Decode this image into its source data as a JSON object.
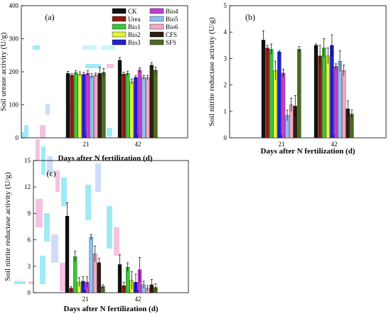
{
  "colors": {
    "CK": "#111111",
    "Urea": "#8b1a12",
    "Bio1": "#3cc63c",
    "Bio2": "#e2f23c",
    "Bio3": "#1f1fd6",
    "Bio4": "#c23fd2",
    "Bio5": "#8fbef0",
    "Bio6": "#f2a8c8",
    "CFS": "#2f1f0f",
    "SFS": "#4c6a22"
  },
  "legend_left": [
    "CK",
    "Urea",
    "Bio1",
    "Bio2",
    "Bio3"
  ],
  "legend_right": [
    "Bio4",
    "Bio5",
    "Bio6",
    "CFS",
    "SFS"
  ],
  "chart_data": [
    {
      "id": "a",
      "panel_label": "(a)",
      "type": "bar",
      "xlabel": "Days after N fertilization (d)",
      "ylabel": "Soil urease activity (U/g)",
      "categories": [
        "21",
        "42"
      ],
      "ylim": [
        0,
        400
      ],
      "yticks": [
        0,
        100,
        200,
        300,
        400
      ],
      "series": [
        {
          "name": "CK",
          "values": [
            195,
            235
          ],
          "errors": [
            6,
            8
          ]
        },
        {
          "name": "Urea",
          "values": [
            190,
            193
          ],
          "errors": [
            5,
            6
          ]
        },
        {
          "name": "Bio1",
          "values": [
            197,
            195
          ],
          "errors": [
            6,
            7
          ]
        },
        {
          "name": "Bio2",
          "values": [
            193,
            170
          ],
          "errors": [
            7,
            8
          ]
        },
        {
          "name": "Bio3",
          "values": [
            192,
            183
          ],
          "errors": [
            6,
            6
          ]
        },
        {
          "name": "Bio4",
          "values": [
            195,
            205
          ],
          "errors": [
            8,
            7
          ]
        },
        {
          "name": "Bio5",
          "values": [
            187,
            183
          ],
          "errors": [
            7,
            6
          ]
        },
        {
          "name": "Bio6",
          "values": [
            190,
            182
          ],
          "errors": [
            6,
            7
          ]
        },
        {
          "name": "CFS",
          "values": [
            195,
            220
          ],
          "errors": [
            18,
            8
          ]
        },
        {
          "name": "SFS",
          "values": [
            198,
            205
          ],
          "errors": [
            12,
            9
          ]
        }
      ]
    },
    {
      "id": "b",
      "panel_label": "(b)",
      "type": "bar",
      "xlabel": "Days after N fertilization (d)",
      "ylabel": "Soil nitrite reductase activity (U/g)",
      "categories": [
        "21",
        "42"
      ],
      "ylim": [
        0,
        5
      ],
      "yticks": [
        0,
        1,
        2,
        3,
        4,
        5
      ],
      "series": [
        {
          "name": "CK",
          "values": [
            3.7,
            3.5
          ],
          "errors": [
            0.35,
            0.05
          ]
        },
        {
          "name": "Urea",
          "values": [
            3.4,
            3.1
          ],
          "errors": [
            0.1,
            0.4
          ]
        },
        {
          "name": "Bio1",
          "values": [
            3.35,
            3.4
          ],
          "errors": [
            0.2,
            0.35
          ]
        },
        {
          "name": "Bio2",
          "values": [
            2.55,
            3.1
          ],
          "errors": [
            0.35,
            0.3
          ]
        },
        {
          "name": "Bio3",
          "values": [
            3.25,
            3.5
          ],
          "errors": [
            0.05,
            0.4
          ]
        },
        {
          "name": "Bio4",
          "values": [
            2.45,
            2.7
          ],
          "errors": [
            0.15,
            0.1
          ]
        },
        {
          "name": "Bio5",
          "values": [
            0.85,
            2.9
          ],
          "errors": [
            0.2,
            0.4
          ]
        },
        {
          "name": "Bio6",
          "values": [
            1.25,
            2.55
          ],
          "errors": [
            0.25,
            0.2
          ]
        },
        {
          "name": "CFS",
          "values": [
            1.2,
            1.1
          ],
          "errors": [
            0.4,
            0.3
          ]
        },
        {
          "name": "SFS",
          "values": [
            3.35,
            0.9
          ],
          "errors": [
            0.1,
            0.15
          ]
        }
      ]
    },
    {
      "id": "c",
      "panel_label": "(c)",
      "type": "bar",
      "xlabel": "Days after N fertilization (d)",
      "ylabel": "Soil nitrite reductase activity (U/g)",
      "categories": [
        "21",
        "42"
      ],
      "ylim": [
        0,
        15
      ],
      "yticks": [
        0,
        3,
        6,
        9,
        12,
        15
      ],
      "series": [
        {
          "name": "CK",
          "values": [
            8.7,
            3.2
          ],
          "errors": [
            1.5,
            1.1
          ]
        },
        {
          "name": "Urea",
          "values": [
            0.5,
            0.8
          ],
          "errors": [
            0.2,
            0.4
          ]
        },
        {
          "name": "Bio1",
          "values": [
            4.1,
            2.9
          ],
          "errors": [
            0.6,
            0.5
          ]
        },
        {
          "name": "Bio2",
          "values": [
            1.2,
            1.4
          ],
          "errors": [
            0.5,
            1.0
          ]
        },
        {
          "name": "Bio3",
          "values": [
            1.3,
            1.2
          ],
          "errors": [
            0.5,
            0.9
          ]
        },
        {
          "name": "Bio4",
          "values": [
            1.2,
            2.6
          ],
          "errors": [
            0.6,
            1.4
          ]
        },
        {
          "name": "Bio5",
          "values": [
            6.3,
            0.9
          ],
          "errors": [
            0.3,
            0.4
          ]
        },
        {
          "name": "Bio6",
          "values": [
            4.4,
            0.5
          ],
          "errors": [
            0.9,
            0.3
          ]
        },
        {
          "name": "CFS",
          "values": [
            3.4,
            0.9
          ],
          "errors": [
            0.5,
            0.6
          ]
        },
        {
          "name": "SFS",
          "values": [
            0.7,
            0.6
          ],
          "errors": [
            0.2,
            0.4
          ]
        }
      ]
    }
  ]
}
